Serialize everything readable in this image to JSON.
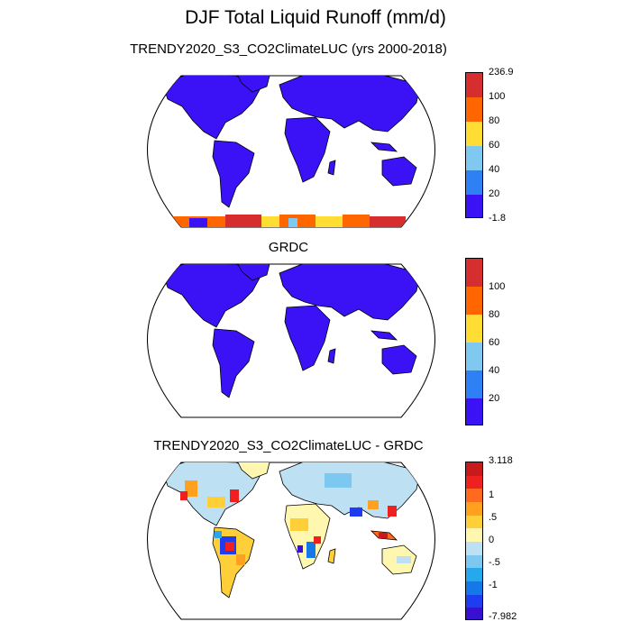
{
  "title": "DJF Total Liquid Runoff (mm/d)",
  "panels": [
    {
      "subtitle": "TRENDY2020_S3_CO2ClimateLUC (yrs 2000-2018)",
      "colorbar": {
        "colors": [
          "#d62e2e",
          "#ff6600",
          "#ffdd33",
          "#7fc8f0",
          "#2f7ff5",
          "#3a12f5"
        ],
        "labels": [
          "236.9",
          "100",
          "80",
          "60",
          "40",
          "20",
          "-1.8"
        ]
      }
    },
    {
      "subtitle": "GRDC",
      "colorbar": {
        "colors": [
          "#d62e2e",
          "#ff6600",
          "#ffdd33",
          "#7fc8f0",
          "#2f7ff5",
          "#3a12f5"
        ],
        "labels": [
          "100",
          "80",
          "60",
          "40",
          "20"
        ]
      }
    },
    {
      "subtitle": "TRENDY2020_S3_CO2ClimateLUC - GRDC",
      "colorbar": {
        "colors": [
          "#c81a1a",
          "#ee2020",
          "#ff6a1e",
          "#ffa01e",
          "#ffcf3a",
          "#fff6b0",
          "#bde0f2",
          "#7dc8f0",
          "#28a8ec",
          "#1478e8",
          "#1e3cf0",
          "#3a10d0"
        ],
        "labels": [
          "3.118",
          "1",
          ".5",
          "0",
          "-.5",
          "-1",
          "-7.982"
        ]
      }
    }
  ]
}
